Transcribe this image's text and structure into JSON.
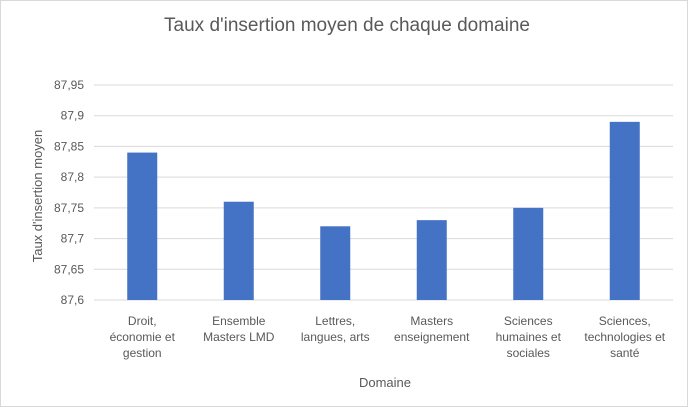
{
  "chart_data": {
    "type": "bar",
    "title": "Taux d'insertion moyen de chaque domaine",
    "xlabel": "Domaine",
    "ylabel": "Taux d'insertion moyen",
    "categories": [
      [
        "Droit,",
        "économie et",
        "gestion"
      ],
      [
        "Ensemble",
        "Masters LMD"
      ],
      [
        "Lettres,",
        "langues, arts"
      ],
      [
        "Masters",
        "enseignement"
      ],
      [
        "Sciences",
        "humaines et",
        "sociales"
      ],
      [
        "Sciences,",
        "technologies et",
        "santé"
      ]
    ],
    "values": [
      87.84,
      87.76,
      87.72,
      87.73,
      87.75,
      87.89
    ],
    "ylim": [
      87.6,
      87.95
    ],
    "yticks": [
      "87,6",
      "87,65",
      "87,7",
      "87,75",
      "87,8",
      "87,85",
      "87,9",
      "87,95"
    ],
    "grid": true,
    "legend": "none",
    "bar_color": "#4472C4"
  }
}
